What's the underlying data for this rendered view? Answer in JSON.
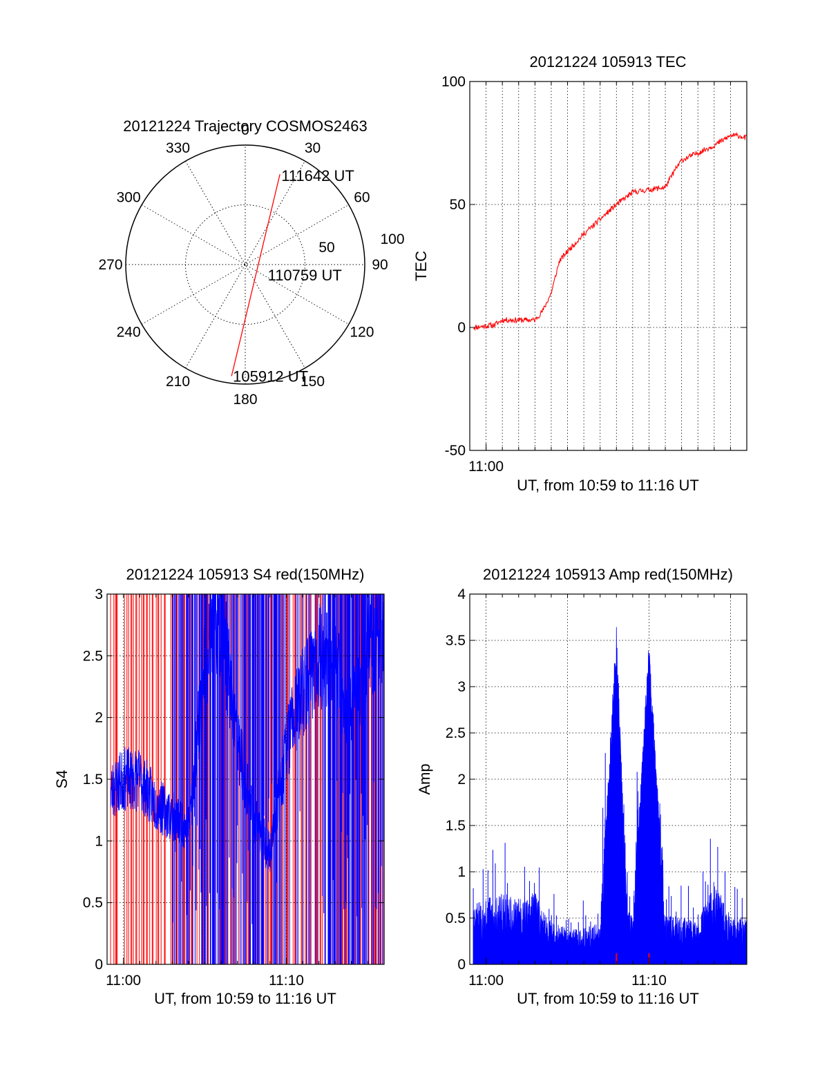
{
  "chart_data": [
    {
      "type": "polar",
      "title": "20121224 Trajectory COSMOS2463",
      "azimuth_labels": [
        "0",
        "30",
        "60",
        "90",
        "120",
        "150",
        "180",
        "210",
        "240",
        "270",
        "300",
        "330"
      ],
      "radial_labels": [
        "50",
        "100"
      ],
      "rlim": [
        0,
        100
      ],
      "grid": true,
      "trajectory": {
        "color": "#ff0000",
        "points": [
          {
            "azimuth": 187,
            "zenith": 94,
            "label": "105912 UT"
          },
          {
            "azimuth": 130,
            "zenith": 8,
            "label": "110759 UT"
          },
          {
            "azimuth": 21,
            "zenith": 81,
            "label": "111642 UT"
          }
        ]
      }
    },
    {
      "type": "line",
      "title": "20121224 105913 TEC",
      "xlabel": "UT, from 10:59 to 11:16 UT",
      "ylabel": "TEC",
      "xlim": [
        "10:59",
        "11:16"
      ],
      "ylim": [
        -50,
        100
      ],
      "yticks": [
        "100",
        "50",
        "0",
        "-50"
      ],
      "xticks": [
        "11:00"
      ],
      "grid": true,
      "series": [
        {
          "color": "#ff0000",
          "x": [
            "10:59:13",
            "11:00:30",
            "11:01:00",
            "11:02:00",
            "11:03:00",
            "11:03:30",
            "11:04:00",
            "11:04:30",
            "11:05:00",
            "11:06:00",
            "11:07:00",
            "11:08:00",
            "11:09:00",
            "11:10:00",
            "11:11:00",
            "11:11:30",
            "11:12:00",
            "11:13:00",
            "11:14:00",
            "11:15:00",
            "11:15:30",
            "11:16:00"
          ],
          "values": [
            0,
            1,
            3,
            3,
            3,
            7,
            14,
            27,
            31,
            38,
            44,
            50,
            55,
            56,
            57,
            63,
            68,
            71,
            74,
            78,
            78,
            77
          ]
        }
      ]
    },
    {
      "type": "line",
      "title": "20121224 105913 S4 red(150MHz)",
      "xlabel": "UT, from 10:59 to 11:16 UT",
      "ylabel": "S4",
      "xlim": [
        "10:59",
        "11:16"
      ],
      "ylim": [
        0,
        3
      ],
      "yticks": [
        "3",
        "2.5",
        "2",
        "1.5",
        "1",
        "0.5",
        "0"
      ],
      "xticks": [
        "11:00",
        "11:10"
      ],
      "grid": true,
      "series": [
        {
          "color": "#0000ff",
          "x": [
            "10:59:13",
            "11:00:00",
            "11:01:00",
            "11:02:00",
            "11:03:00",
            "11:04:00",
            "11:05:00",
            "11:06:00",
            "11:07:00",
            "11:08:00",
            "11:09:00",
            "11:10:00",
            "11:11:00",
            "11:12:00",
            "11:13:00",
            "11:14:00",
            "11:15:00",
            "11:16:00"
          ],
          "values": [
            1.4,
            1.5,
            1.5,
            1.3,
            1.2,
            1.1,
            2.5,
            2.8,
            1.8,
            1.2,
            0.9,
            1.8,
            2.2,
            2.5,
            2.4,
            2.0,
            2.6,
            2.7
          ]
        }
      ]
    },
    {
      "type": "line",
      "title": "20121224 105913 Amp red(150MHz)",
      "xlabel": "UT, from 10:59 to 11:16 UT",
      "ylabel": "Amp",
      "xlim": [
        "10:59",
        "11:16"
      ],
      "ylim": [
        0,
        4
      ],
      "yticks": [
        "4",
        "3.5",
        "3",
        "2.5",
        "2",
        "1.5",
        "1",
        "0.5",
        "0"
      ],
      "xticks": [
        "11:00",
        "11:10"
      ],
      "grid": true,
      "series": [
        {
          "color": "#0000ff",
          "x": [
            "10:59:13",
            "11:00:00",
            "11:01:00",
            "11:02:00",
            "11:03:00",
            "11:04:00",
            "11:05:00",
            "11:06:00",
            "11:07:00",
            "11:08:00",
            "11:08:40",
            "11:09:00",
            "11:10:00",
            "11:11:00",
            "11:12:00",
            "11:13:00",
            "11:14:00",
            "11:15:00",
            "11:16:00"
          ],
          "values": [
            0.5,
            0.55,
            0.6,
            0.55,
            0.6,
            0.35,
            0.3,
            0.3,
            0.35,
            3.7,
            0.45,
            0.4,
            3.55,
            0.4,
            0.4,
            0.35,
            0.7,
            0.4,
            0.4
          ]
        }
      ]
    }
  ]
}
